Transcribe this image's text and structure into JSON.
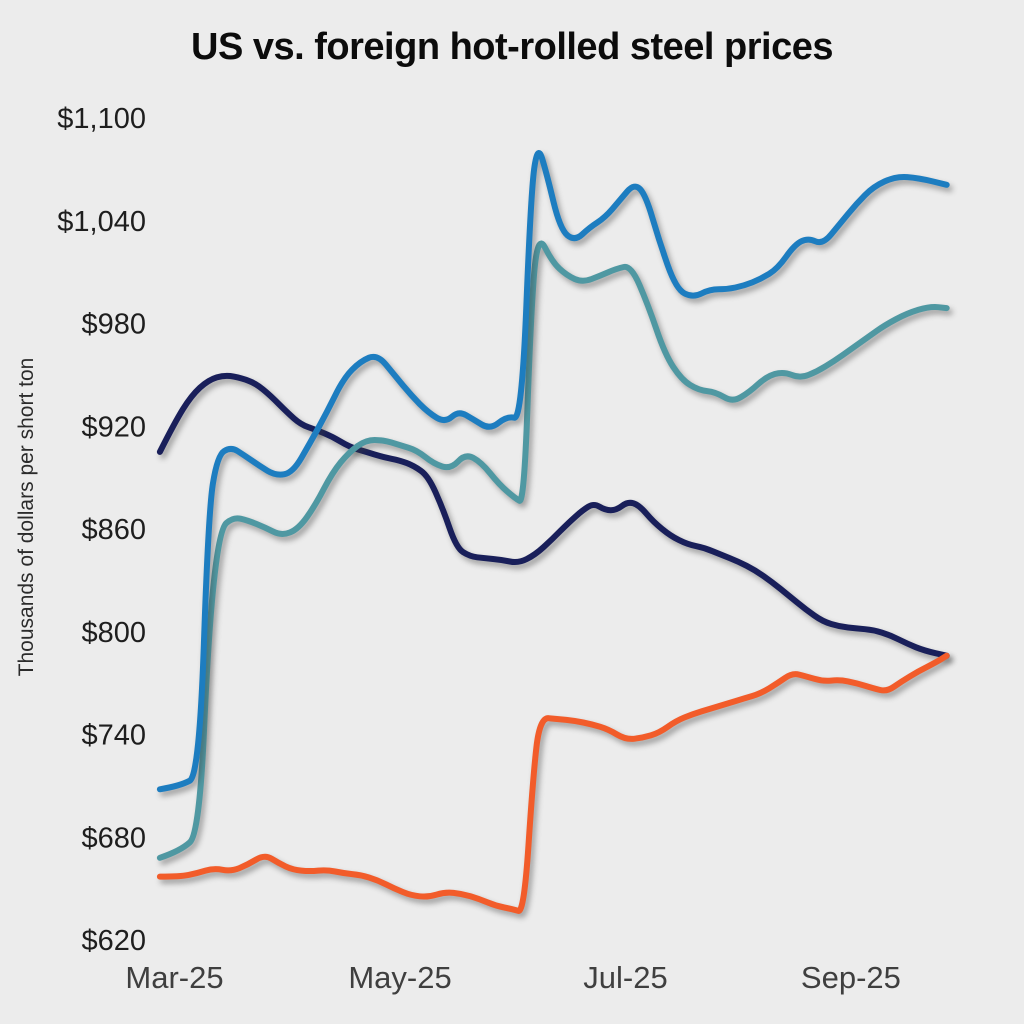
{
  "chart_data": {
    "type": "line",
    "title": "US vs. foreign hot-rolled steel prices",
    "ylabel": "Thousands of dollars per short ton",
    "xlabel": "",
    "x_encoding": "calendar months of 2025 (3.0 = Mar-25, 5.0 = May-25, 7.0 = Jul-25, 9.0 = Sep-25)",
    "xlim": [
      2.8,
      9.95
    ],
    "ylim": [
      620,
      1100
    ],
    "grid": false,
    "legend": "none",
    "background": "#ececec",
    "y_ticks": [
      {
        "value": 1100,
        "label": "$1,100"
      },
      {
        "value": 1040,
        "label": "$1,040"
      },
      {
        "value": 980,
        "label": "$980"
      },
      {
        "value": 920,
        "label": "$920"
      },
      {
        "value": 860,
        "label": "$860"
      },
      {
        "value": 800,
        "label": "$800"
      },
      {
        "value": 740,
        "label": "$740"
      },
      {
        "value": 680,
        "label": "$680"
      },
      {
        "value": 620,
        "label": "$620"
      }
    ],
    "x_ticks": [
      {
        "value": 3,
        "label": "Mar-25"
      },
      {
        "value": 5,
        "label": "May-25"
      },
      {
        "value": 7,
        "label": "Jul-25"
      },
      {
        "value": 9,
        "label": "Sep-25"
      }
    ],
    "series": [
      {
        "name": "navy",
        "color": "#191f5a",
        "points": [
          [
            2.87,
            905
          ],
          [
            3.0,
            922
          ],
          [
            3.15,
            938
          ],
          [
            3.3,
            947
          ],
          [
            3.45,
            950
          ],
          [
            3.6,
            948
          ],
          [
            3.72,
            945
          ],
          [
            3.85,
            938
          ],
          [
            4.0,
            928
          ],
          [
            4.12,
            921
          ],
          [
            4.25,
            918
          ],
          [
            4.4,
            914
          ],
          [
            4.55,
            908
          ],
          [
            4.7,
            905
          ],
          [
            4.85,
            902
          ],
          [
            5.0,
            900
          ],
          [
            5.12,
            897
          ],
          [
            5.25,
            891
          ],
          [
            5.38,
            872
          ],
          [
            5.5,
            849
          ],
          [
            5.62,
            844
          ],
          [
            5.75,
            843
          ],
          [
            5.9,
            842
          ],
          [
            6.05,
            840
          ],
          [
            6.2,
            845
          ],
          [
            6.35,
            854
          ],
          [
            6.5,
            864
          ],
          [
            6.62,
            871
          ],
          [
            6.72,
            875
          ],
          [
            6.82,
            871
          ],
          [
            6.92,
            871
          ],
          [
            7.02,
            876
          ],
          [
            7.12,
            874
          ],
          [
            7.25,
            864
          ],
          [
            7.4,
            856
          ],
          [
            7.55,
            851
          ],
          [
            7.7,
            849
          ],
          [
            7.85,
            845
          ],
          [
            8.0,
            841
          ],
          [
            8.15,
            836
          ],
          [
            8.3,
            829
          ],
          [
            8.45,
            821
          ],
          [
            8.6,
            813
          ],
          [
            8.75,
            806
          ],
          [
            8.9,
            803
          ],
          [
            9.05,
            802
          ],
          [
            9.2,
            801
          ],
          [
            9.35,
            798
          ],
          [
            9.5,
            793
          ],
          [
            9.65,
            789
          ],
          [
            9.85,
            786
          ]
        ]
      },
      {
        "name": "teal",
        "color": "#4f98a2",
        "points": [
          [
            2.87,
            668
          ],
          [
            3.05,
            672
          ],
          [
            3.22,
            682
          ],
          [
            3.3,
            800
          ],
          [
            3.4,
            860
          ],
          [
            3.52,
            867
          ],
          [
            3.65,
            865
          ],
          [
            3.8,
            861
          ],
          [
            3.95,
            856
          ],
          [
            4.1,
            860
          ],
          [
            4.25,
            874
          ],
          [
            4.4,
            893
          ],
          [
            4.55,
            905
          ],
          [
            4.7,
            912
          ],
          [
            4.85,
            912
          ],
          [
            5.0,
            909
          ],
          [
            5.15,
            906
          ],
          [
            5.3,
            898
          ],
          [
            5.45,
            895
          ],
          [
            5.58,
            904
          ],
          [
            5.72,
            899
          ],
          [
            5.88,
            886
          ],
          [
            6.02,
            878
          ],
          [
            6.1,
            875
          ],
          [
            6.16,
            985
          ],
          [
            6.22,
            1033
          ],
          [
            6.35,
            1016
          ],
          [
            6.48,
            1008
          ],
          [
            6.62,
            1004
          ],
          [
            6.78,
            1008
          ],
          [
            6.92,
            1012
          ],
          [
            7.05,
            1014
          ],
          [
            7.2,
            991
          ],
          [
            7.35,
            962
          ],
          [
            7.5,
            947
          ],
          [
            7.65,
            941
          ],
          [
            7.8,
            940
          ],
          [
            7.95,
            934
          ],
          [
            8.1,
            940
          ],
          [
            8.25,
            949
          ],
          [
            8.4,
            952
          ],
          [
            8.55,
            948
          ],
          [
            8.7,
            952
          ],
          [
            8.85,
            958
          ],
          [
            9.0,
            965
          ],
          [
            9.15,
            972
          ],
          [
            9.3,
            979
          ],
          [
            9.5,
            986
          ],
          [
            9.7,
            990
          ],
          [
            9.85,
            989
          ]
        ]
      },
      {
        "name": "blue",
        "color": "#1d7dc0",
        "points": [
          [
            2.87,
            708
          ],
          [
            3.05,
            710
          ],
          [
            3.22,
            716
          ],
          [
            3.3,
            870
          ],
          [
            3.38,
            903
          ],
          [
            3.5,
            908
          ],
          [
            3.62,
            903
          ],
          [
            3.75,
            897
          ],
          [
            3.9,
            891
          ],
          [
            4.05,
            893
          ],
          [
            4.2,
            910
          ],
          [
            4.35,
            928
          ],
          [
            4.5,
            948
          ],
          [
            4.65,
            958
          ],
          [
            4.8,
            962
          ],
          [
            4.95,
            950
          ],
          [
            5.1,
            938
          ],
          [
            5.25,
            928
          ],
          [
            5.4,
            922
          ],
          [
            5.52,
            929
          ],
          [
            5.65,
            924
          ],
          [
            5.8,
            918
          ],
          [
            5.95,
            926
          ],
          [
            6.08,
            924
          ],
          [
            6.16,
            1055
          ],
          [
            6.22,
            1085
          ],
          [
            6.3,
            1068
          ],
          [
            6.42,
            1035
          ],
          [
            6.55,
            1028
          ],
          [
            6.68,
            1036
          ],
          [
            6.82,
            1042
          ],
          [
            6.95,
            1052
          ],
          [
            7.08,
            1062
          ],
          [
            7.18,
            1055
          ],
          [
            7.3,
            1028
          ],
          [
            7.45,
            1000
          ],
          [
            7.6,
            995
          ],
          [
            7.75,
            1000
          ],
          [
            7.9,
            1000
          ],
          [
            8.05,
            1002
          ],
          [
            8.2,
            1006
          ],
          [
            8.35,
            1012
          ],
          [
            8.5,
            1026
          ],
          [
            8.62,
            1030
          ],
          [
            8.75,
            1026
          ],
          [
            8.9,
            1038
          ],
          [
            9.05,
            1050
          ],
          [
            9.2,
            1060
          ],
          [
            9.4,
            1066
          ],
          [
            9.6,
            1065
          ],
          [
            9.85,
            1061
          ]
        ]
      },
      {
        "name": "orange",
        "color": "#f25c2a",
        "points": [
          [
            2.87,
            657
          ],
          [
            3.05,
            657
          ],
          [
            3.2,
            659
          ],
          [
            3.35,
            662
          ],
          [
            3.5,
            660
          ],
          [
            3.65,
            664
          ],
          [
            3.8,
            670
          ],
          [
            3.92,
            665
          ],
          [
            4.05,
            661
          ],
          [
            4.2,
            660
          ],
          [
            4.35,
            661
          ],
          [
            4.5,
            659
          ],
          [
            4.65,
            658
          ],
          [
            4.8,
            655
          ],
          [
            4.95,
            650
          ],
          [
            5.1,
            646
          ],
          [
            5.25,
            645
          ],
          [
            5.4,
            648
          ],
          [
            5.55,
            647
          ],
          [
            5.7,
            644
          ],
          [
            5.85,
            640
          ],
          [
            6.0,
            638
          ],
          [
            6.1,
            636
          ],
          [
            6.18,
            715
          ],
          [
            6.24,
            750
          ],
          [
            6.4,
            749
          ],
          [
            6.55,
            748
          ],
          [
            6.7,
            746
          ],
          [
            6.85,
            743
          ],
          [
            7.0,
            737
          ],
          [
            7.15,
            738
          ],
          [
            7.3,
            741
          ],
          [
            7.45,
            748
          ],
          [
            7.6,
            752
          ],
          [
            7.75,
            755
          ],
          [
            7.9,
            758
          ],
          [
            8.05,
            761
          ],
          [
            8.2,
            764
          ],
          [
            8.35,
            770
          ],
          [
            8.48,
            776
          ],
          [
            8.6,
            774
          ],
          [
            8.75,
            771
          ],
          [
            8.9,
            772
          ],
          [
            9.05,
            770
          ],
          [
            9.2,
            767
          ],
          [
            9.32,
            765
          ],
          [
            9.45,
            771
          ],
          [
            9.6,
            777
          ],
          [
            9.75,
            782
          ],
          [
            9.85,
            786
          ]
        ]
      }
    ]
  }
}
